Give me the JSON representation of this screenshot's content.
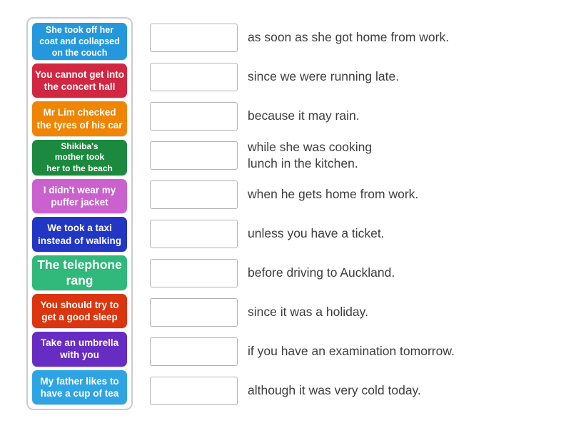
{
  "activity": {
    "kind": "match-up-exercise"
  },
  "colors": {
    "background": "#ffffff",
    "tray_border": "#cccccc",
    "drop_zone_border": "#b3b3b3",
    "tile_text": "#ffffff",
    "answer_text": "#3d3d3d"
  },
  "pairs": [
    {
      "tile": "She took off her\ncoat and collapsed\non the couch",
      "tile_color": "#2598dd",
      "answer": "as soon as she got home from work."
    },
    {
      "tile": "You cannot get into\nthe concert hall",
      "tile_color": "#d22742",
      "answer": "since we were running late."
    },
    {
      "tile": "Mr Lim checked\nthe tyres of his car",
      "tile_color": "#ef8503",
      "answer": "because it may rain."
    },
    {
      "tile": "Shikiba's\nmother took\nher to the beach",
      "tile_color": "#1b8a3e",
      "answer": "while she was cooking\nlunch in the kitchen."
    },
    {
      "tile": "I didn't wear my\npuffer jacket",
      "tile_color": "#cb60cf",
      "answer": "when he gets home from work."
    },
    {
      "tile": "We took a taxi\ninstead of walking",
      "tile_color": "#2236c4",
      "answer": "unless you have a ticket."
    },
    {
      "tile": "The telephone\nrang",
      "tile_color": "#31b87b",
      "answer": "before driving to Auckland."
    },
    {
      "tile": "You should try to\nget a good sleep",
      "tile_color": "#da350f",
      "answer": "since it was a holiday."
    },
    {
      "tile": "Take an umbrella\nwith you",
      "tile_color": "#672cc2",
      "answer": "if you have an examination tomorrow."
    },
    {
      "tile": "My father likes to\nhave a cup of tea",
      "tile_color": "#2ea4e4",
      "answer": "although it was very cold today."
    }
  ]
}
